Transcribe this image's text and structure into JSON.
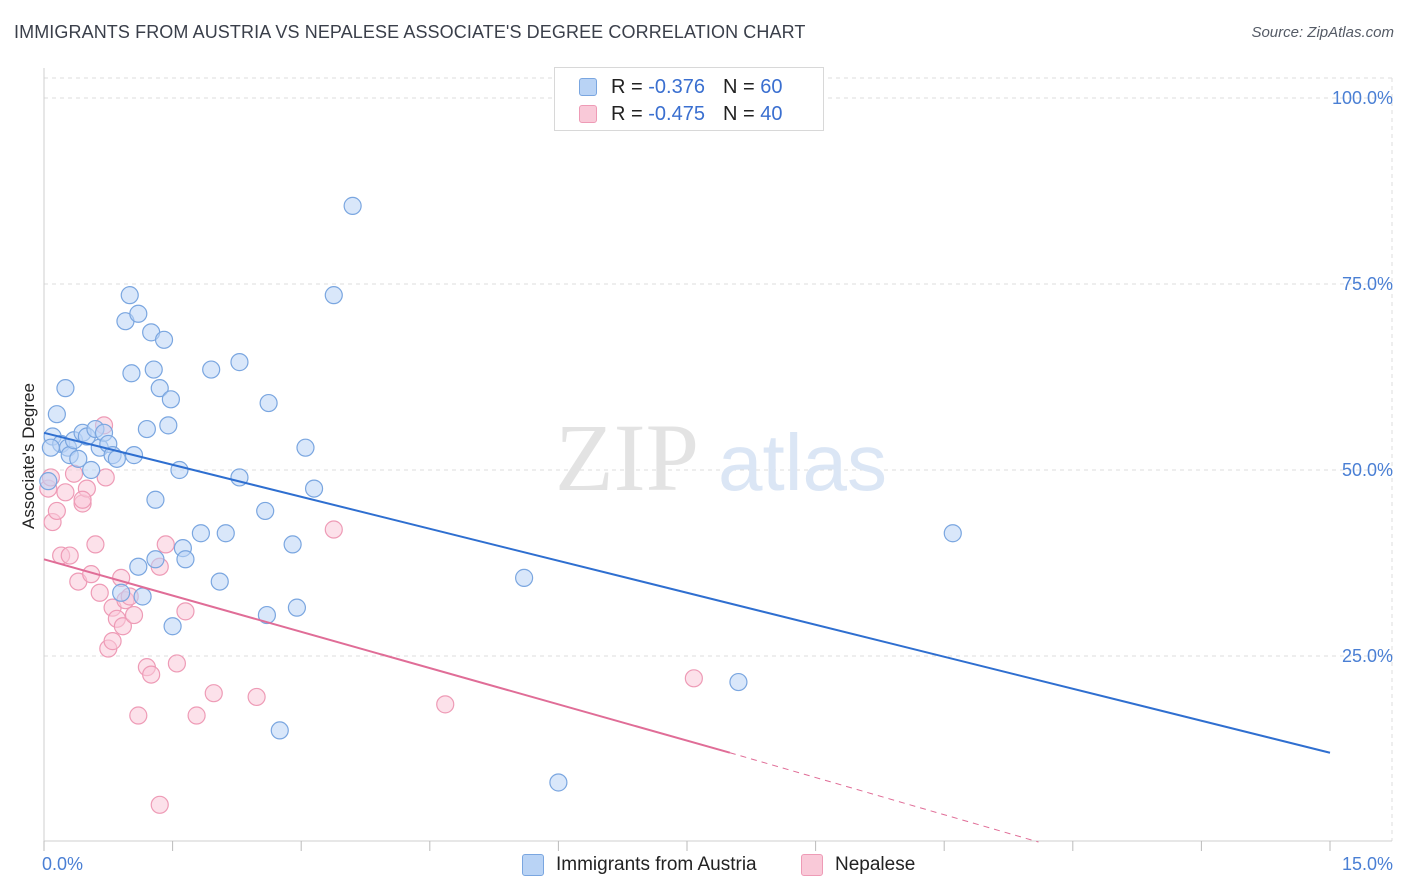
{
  "title": "IMMIGRANTS FROM AUSTRIA VS NEPALESE ASSOCIATE'S DEGREE CORRELATION CHART",
  "source": "Source: ZipAtlas.com",
  "watermark": {
    "zip": "ZIP",
    "atlas": "atlas"
  },
  "legend": {
    "r_label": "R =",
    "n_label": "N =",
    "rows": [
      {
        "r": "-0.376",
        "n": "60"
      },
      {
        "r": "-0.475",
        "n": "40"
      }
    ]
  },
  "colors": {
    "austria_fill": "#b9d3f5",
    "austria_stroke": "#7aa6e0",
    "austria_line": "#2f6fd0",
    "nepalese_fill": "#f9c9d8",
    "nepalese_stroke": "#ee9bb6",
    "nepalese_line": "#e06d97",
    "grid": "#dddddd",
    "tick_label": "#4a7fd4"
  },
  "chart_data": {
    "type": "scatter",
    "title": "IMMIGRANTS FROM AUSTRIA VS NEPALESE ASSOCIATE'S DEGREE CORRELATION CHART",
    "xlabel": "",
    "ylabel": "Associate's Degree",
    "xlim": [
      0,
      15
    ],
    "ylim": [
      0,
      100
    ],
    "x_tick_labels": [
      "0.0%",
      "15.0%"
    ],
    "y_tick_labels": [
      "100.0%",
      "75.0%",
      "50.0%",
      "25.0%"
    ],
    "y_ticks": [
      100,
      75,
      50,
      25
    ],
    "grid": true,
    "legend_position": "top-center",
    "series": [
      {
        "name": "Immigrants from Austria",
        "r": -0.376,
        "n": 60,
        "trend": {
          "x0": 0.0,
          "y0": 55.0,
          "x1": 15.0,
          "y1": 12.0
        },
        "points": [
          [
            0.05,
            48.5
          ],
          [
            0.1,
            54.5
          ],
          [
            0.15,
            57.5
          ],
          [
            0.2,
            53.5
          ],
          [
            0.25,
            61.0
          ],
          [
            0.28,
            53.0
          ],
          [
            0.3,
            52.0
          ],
          [
            0.35,
            54.0
          ],
          [
            0.4,
            51.5
          ],
          [
            0.45,
            55.0
          ],
          [
            0.5,
            54.5
          ],
          [
            0.55,
            50.0
          ],
          [
            0.6,
            55.5
          ],
          [
            0.65,
            53.0
          ],
          [
            0.7,
            55.0
          ],
          [
            0.75,
            53.5
          ],
          [
            0.8,
            52.0
          ],
          [
            0.85,
            51.5
          ],
          [
            0.9,
            33.5
          ],
          [
            0.95,
            70.0
          ],
          [
            1.0,
            73.5
          ],
          [
            1.02,
            63.0
          ],
          [
            1.05,
            52.0
          ],
          [
            1.1,
            71.0
          ],
          [
            1.1,
            37.0
          ],
          [
            1.15,
            33.0
          ],
          [
            1.2,
            55.5
          ],
          [
            1.25,
            68.5
          ],
          [
            1.28,
            63.5
          ],
          [
            1.3,
            38.0
          ],
          [
            1.3,
            46.0
          ],
          [
            1.35,
            61.0
          ],
          [
            1.4,
            67.5
          ],
          [
            1.45,
            56.0
          ],
          [
            1.48,
            59.5
          ],
          [
            1.5,
            29.0
          ],
          [
            1.58,
            50.0
          ],
          [
            1.62,
            39.5
          ],
          [
            1.65,
            38.0
          ],
          [
            1.83,
            41.5
          ],
          [
            1.95,
            63.5
          ],
          [
            2.05,
            35.0
          ],
          [
            2.12,
            41.5
          ],
          [
            2.28,
            64.5
          ],
          [
            2.28,
            49.0
          ],
          [
            2.58,
            44.5
          ],
          [
            2.6,
            30.5
          ],
          [
            2.62,
            59.0
          ],
          [
            2.75,
            15.0
          ],
          [
            2.9,
            40.0
          ],
          [
            2.95,
            31.5
          ],
          [
            3.05,
            53.0
          ],
          [
            3.15,
            47.5
          ],
          [
            3.38,
            73.5
          ],
          [
            3.6,
            85.5
          ],
          [
            5.6,
            35.5
          ],
          [
            6.0,
            8.0
          ],
          [
            8.1,
            21.5
          ],
          [
            10.6,
            41.5
          ],
          [
            0.08,
            53.0
          ]
        ]
      },
      {
        "name": "Nepalese",
        "r": -0.475,
        "n": 40,
        "trend": {
          "x0": 0.0,
          "y0": 38.0,
          "x1": 8.0,
          "y1": 12.0,
          "dashed_to": {
            "x": 11.6,
            "y": 0.0
          }
        },
        "points": [
          [
            0.05,
            47.5
          ],
          [
            0.08,
            49.0
          ],
          [
            0.1,
            43.0
          ],
          [
            0.15,
            44.5
          ],
          [
            0.2,
            38.5
          ],
          [
            0.25,
            47.0
          ],
          [
            0.3,
            38.5
          ],
          [
            0.35,
            49.5
          ],
          [
            0.4,
            35.0
          ],
          [
            0.45,
            45.5
          ],
          [
            0.5,
            47.5
          ],
          [
            0.55,
            36.0
          ],
          [
            0.6,
            40.0
          ],
          [
            0.65,
            33.5
          ],
          [
            0.7,
            56.0
          ],
          [
            0.72,
            49.0
          ],
          [
            0.75,
            26.0
          ],
          [
            0.8,
            27.0
          ],
          [
            0.8,
            31.5
          ],
          [
            0.85,
            30.0
          ],
          [
            0.9,
            35.5
          ],
          [
            0.92,
            29.0
          ],
          [
            0.95,
            32.5
          ],
          [
            1.0,
            33.0
          ],
          [
            1.05,
            30.5
          ],
          [
            1.1,
            17.0
          ],
          [
            1.2,
            23.5
          ],
          [
            1.25,
            22.5
          ],
          [
            1.35,
            37.0
          ],
          [
            1.42,
            40.0
          ],
          [
            1.55,
            24.0
          ],
          [
            1.65,
            31.0
          ],
          [
            1.78,
            17.0
          ],
          [
            1.98,
            20.0
          ],
          [
            2.48,
            19.5
          ],
          [
            3.38,
            42.0
          ],
          [
            4.68,
            18.5
          ],
          [
            7.58,
            22.0
          ],
          [
            1.35,
            5.0
          ],
          [
            0.45,
            46.0
          ]
        ]
      }
    ]
  },
  "bottom_legend": [
    {
      "label": "Immigrants from Austria"
    },
    {
      "label": "Nepalese"
    }
  ]
}
